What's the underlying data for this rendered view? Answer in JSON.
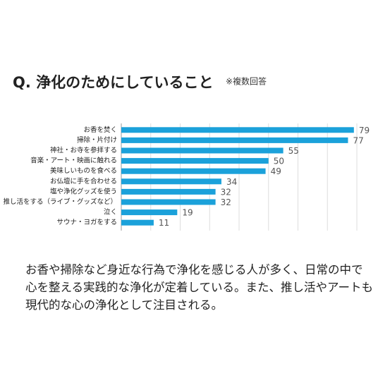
{
  "chart_data": {
    "type": "barh",
    "title": "Q. 浄化のためにしていること",
    "subtitle": "※複数回答",
    "categories": [
      "お香を焚く",
      "掃除・片付け",
      "神社・お寺を参拝する",
      "音楽・アート・映画に触れる",
      "美味しいものを食べる",
      "お仏壇に手を合わせる",
      "塩や浄化グッズを使う",
      "推し活をする（ライブ・グッズなど）",
      "泣く",
      "サウナ・ヨガをする"
    ],
    "values": [
      79,
      77,
      55,
      50,
      49,
      34,
      32,
      32,
      19,
      11
    ],
    "color": "#1ba1da",
    "xlim": [
      0,
      80
    ],
    "xticks": [
      0,
      10,
      20,
      30,
      40,
      50,
      60,
      70,
      80
    ],
    "grid": true,
    "annotations": [
      "お香や掃除など身近な行為で浄化を感じる人が多く、日常の中で",
      "心を整える実践的な浄化が定着している。また、推し活やアートも",
      "現代的な心の浄化として注目される。"
    ]
  }
}
